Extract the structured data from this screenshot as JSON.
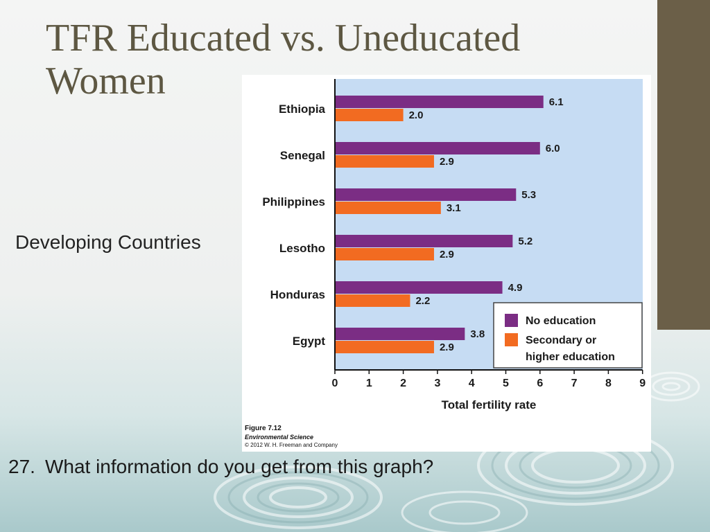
{
  "slide": {
    "title": "TFR Educated vs. Uneducated Women",
    "side_label": "Developing Countries",
    "question_number": "27.",
    "question_text": "What information do you get from this graph?"
  },
  "figure": {
    "label": "Figure 7.12",
    "source": "Environmental Science",
    "copyright": "© 2012 W. H. Freeman and Company"
  },
  "colors": {
    "plot_bg": "#c6dcf3",
    "no_education": "#7b2d84",
    "secondary": "#f26b21",
    "accent_bar": "#6b5f48",
    "title": "#5d5742"
  },
  "chart_data": {
    "type": "bar",
    "orientation": "horizontal",
    "title": "",
    "xlabel": "Total fertility rate",
    "ylabel": "",
    "xlim": [
      0,
      9
    ],
    "x_ticks": [
      "0",
      "1",
      "2",
      "3",
      "4",
      "5",
      "6",
      "7",
      "8",
      "9"
    ],
    "grid": false,
    "legend_position": "bottom-right",
    "categories": [
      "Ethiopia",
      "Senegal",
      "Philippines",
      "Lesotho",
      "Honduras",
      "Egypt"
    ],
    "series": [
      {
        "name": "No education",
        "values": [
          6.1,
          6.0,
          5.3,
          5.2,
          4.9,
          3.8
        ],
        "labels": [
          "6.1",
          "6.0",
          "5.3",
          "5.2",
          "4.9",
          "3.8"
        ]
      },
      {
        "name": "Secondary or higher education",
        "name_lines": [
          "Secondary or",
          "higher education"
        ],
        "values": [
          2.0,
          2.9,
          3.1,
          2.9,
          2.2,
          2.9
        ],
        "labels": [
          "2.0",
          "2.9",
          "3.1",
          "2.9",
          "2.2",
          "2.9"
        ]
      }
    ]
  }
}
